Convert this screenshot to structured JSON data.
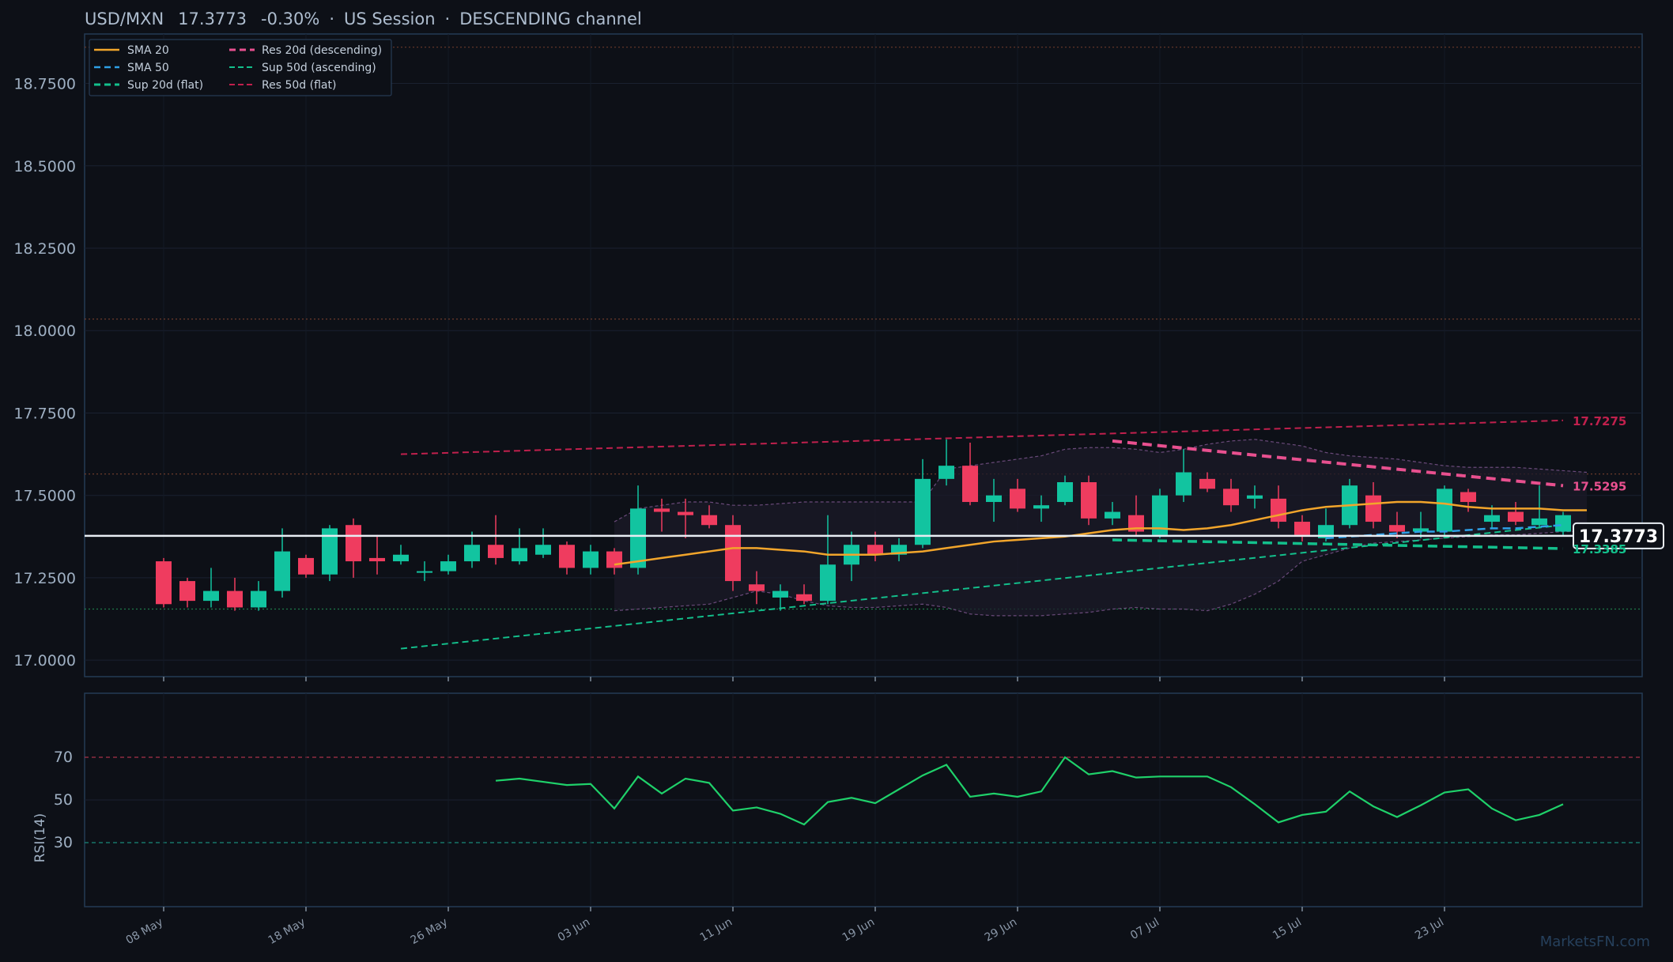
{
  "header": {
    "symbol": "USD/MXN",
    "price": "17.3773",
    "change": "-0.30%",
    "session": "US Session",
    "channel": "DESCENDING channel"
  },
  "watermark": "MarketsFN.com",
  "colors": {
    "background": "#0d1017",
    "bull": "#12c4a0",
    "bear": "#ef3c5f",
    "sma20": "#f2a52b",
    "sma50": "#2e9fe6",
    "support": "#13c08c",
    "resistance": "#e8508f",
    "res50": "#c0204d",
    "rsi": "#1fd16a"
  },
  "chart_data": [
    {
      "type": "candlestick",
      "ylim": [
        16.95,
        18.9
      ],
      "yticks": [
        "17.0000",
        "17.2500",
        "17.5000",
        "17.7500",
        "18.0000",
        "18.2500",
        "18.5000",
        "18.7500"
      ],
      "xticks": [
        "08 May",
        "18 May",
        "26 May",
        "03 Jun",
        "11 Jun",
        "19 Jun",
        "29 Jun",
        "07 Jul",
        "15 Jul",
        "23 Jul"
      ],
      "xtick_index": [
        0,
        6,
        12,
        18,
        24,
        30,
        36,
        42,
        48,
        54
      ],
      "legend": [
        "SMA 20",
        "SMA 50",
        "Sup 20d (flat)",
        "Res 20d (descending)",
        "Sup 50d (ascending)",
        "Res 50d (flat)"
      ],
      "legend_placement": "top-left",
      "candles": [
        {
          "o": 17.3,
          "h": 17.31,
          "l": 17.16,
          "c": 17.17
        },
        {
          "o": 17.24,
          "h": 17.25,
          "l": 17.16,
          "c": 17.18
        },
        {
          "o": 17.18,
          "h": 17.28,
          "l": 17.16,
          "c": 17.21
        },
        {
          "o": 17.21,
          "h": 17.25,
          "l": 17.15,
          "c": 17.16
        },
        {
          "o": 17.16,
          "h": 17.24,
          "l": 17.15,
          "c": 17.21
        },
        {
          "o": 17.21,
          "h": 17.4,
          "l": 17.19,
          "c": 17.33
        },
        {
          "o": 17.31,
          "h": 17.32,
          "l": 17.25,
          "c": 17.26
        },
        {
          "o": 17.26,
          "h": 17.41,
          "l": 17.24,
          "c": 17.4
        },
        {
          "o": 17.41,
          "h": 17.43,
          "l": 17.25,
          "c": 17.3
        },
        {
          "o": 17.31,
          "h": 17.38,
          "l": 17.26,
          "c": 17.3
        },
        {
          "o": 17.3,
          "h": 17.35,
          "l": 17.29,
          "c": 17.32
        },
        {
          "o": 17.27,
          "h": 17.3,
          "l": 17.24,
          "c": 17.27
        },
        {
          "o": 17.27,
          "h": 17.32,
          "l": 17.26,
          "c": 17.3
        },
        {
          "o": 17.3,
          "h": 17.39,
          "l": 17.28,
          "c": 17.35
        },
        {
          "o": 17.35,
          "h": 17.44,
          "l": 17.29,
          "c": 17.31
        },
        {
          "o": 17.3,
          "h": 17.4,
          "l": 17.29,
          "c": 17.34
        },
        {
          "o": 17.32,
          "h": 17.4,
          "l": 17.31,
          "c": 17.35
        },
        {
          "o": 17.35,
          "h": 17.36,
          "l": 17.26,
          "c": 17.28
        },
        {
          "o": 17.28,
          "h": 17.35,
          "l": 17.26,
          "c": 17.33
        },
        {
          "o": 17.33,
          "h": 17.34,
          "l": 17.26,
          "c": 17.28
        },
        {
          "o": 17.28,
          "h": 17.53,
          "l": 17.26,
          "c": 17.46
        },
        {
          "o": 17.46,
          "h": 17.49,
          "l": 17.39,
          "c": 17.45
        },
        {
          "o": 17.45,
          "h": 17.49,
          "l": 17.37,
          "c": 17.44
        },
        {
          "o": 17.44,
          "h": 17.47,
          "l": 17.4,
          "c": 17.41
        },
        {
          "o": 17.41,
          "h": 17.44,
          "l": 17.21,
          "c": 17.24
        },
        {
          "o": 17.23,
          "h": 17.27,
          "l": 17.17,
          "c": 17.21
        },
        {
          "o": 17.19,
          "h": 17.23,
          "l": 17.15,
          "c": 17.21
        },
        {
          "o": 17.2,
          "h": 17.23,
          "l": 17.17,
          "c": 17.18
        },
        {
          "o": 17.18,
          "h": 17.44,
          "l": 17.17,
          "c": 17.29
        },
        {
          "o": 17.29,
          "h": 17.39,
          "l": 17.24,
          "c": 17.35
        },
        {
          "o": 17.35,
          "h": 17.39,
          "l": 17.3,
          "c": 17.32
        },
        {
          "o": 17.32,
          "h": 17.37,
          "l": 17.3,
          "c": 17.35
        },
        {
          "o": 17.35,
          "h": 17.61,
          "l": 17.34,
          "c": 17.55
        },
        {
          "o": 17.55,
          "h": 17.67,
          "l": 17.53,
          "c": 17.59
        },
        {
          "o": 17.59,
          "h": 17.66,
          "l": 17.47,
          "c": 17.48
        },
        {
          "o": 17.48,
          "h": 17.55,
          "l": 17.42,
          "c": 17.5
        },
        {
          "o": 17.52,
          "h": 17.55,
          "l": 17.45,
          "c": 17.46
        },
        {
          "o": 17.46,
          "h": 17.5,
          "l": 17.42,
          "c": 17.47
        },
        {
          "o": 17.48,
          "h": 17.56,
          "l": 17.47,
          "c": 17.54
        },
        {
          "o": 17.54,
          "h": 17.56,
          "l": 17.41,
          "c": 17.43
        },
        {
          "o": 17.43,
          "h": 17.48,
          "l": 17.41,
          "c": 17.45
        },
        {
          "o": 17.44,
          "h": 17.5,
          "l": 17.38,
          "c": 17.39
        },
        {
          "o": 17.38,
          "h": 17.52,
          "l": 17.37,
          "c": 17.5
        },
        {
          "o": 17.5,
          "h": 17.64,
          "l": 17.48,
          "c": 17.57
        },
        {
          "o": 17.55,
          "h": 17.57,
          "l": 17.51,
          "c": 17.52
        },
        {
          "o": 17.52,
          "h": 17.55,
          "l": 17.45,
          "c": 17.47
        },
        {
          "o": 17.49,
          "h": 17.53,
          "l": 17.46,
          "c": 17.5
        },
        {
          "o": 17.49,
          "h": 17.53,
          "l": 17.4,
          "c": 17.42
        },
        {
          "o": 17.42,
          "h": 17.44,
          "l": 17.36,
          "c": 17.38
        },
        {
          "o": 17.37,
          "h": 17.46,
          "l": 17.36,
          "c": 17.41
        },
        {
          "o": 17.41,
          "h": 17.55,
          "l": 17.4,
          "c": 17.53
        },
        {
          "o": 17.5,
          "h": 17.54,
          "l": 17.4,
          "c": 17.42
        },
        {
          "o": 17.41,
          "h": 17.45,
          "l": 17.37,
          "c": 17.39
        },
        {
          "o": 17.39,
          "h": 17.45,
          "l": 17.37,
          "c": 17.4
        },
        {
          "o": 17.39,
          "h": 17.53,
          "l": 17.38,
          "c": 17.52
        },
        {
          "o": 17.51,
          "h": 17.52,
          "l": 17.45,
          "c": 17.48
        },
        {
          "o": 17.42,
          "h": 17.47,
          "l": 17.4,
          "c": 17.44
        },
        {
          "o": 17.45,
          "h": 17.48,
          "l": 17.41,
          "c": 17.42
        },
        {
          "o": 17.41,
          "h": 17.53,
          "l": 17.4,
          "c": 17.43
        },
        {
          "o": 17.39,
          "h": 17.45,
          "l": 17.38,
          "c": 17.44
        }
      ],
      "sma20": {
        "start": 19,
        "values": [
          17.29,
          17.3,
          17.31,
          17.32,
          17.33,
          17.34,
          17.34,
          17.335,
          17.33,
          17.32,
          17.32,
          17.32,
          17.325,
          17.33,
          17.34,
          17.35,
          17.36,
          17.365,
          17.37,
          17.375,
          17.385,
          17.395,
          17.4,
          17.4,
          17.395,
          17.4,
          17.41,
          17.425,
          17.44,
          17.455,
          17.465,
          17.47,
          17.475,
          17.48,
          17.48,
          17.475,
          17.465,
          17.46,
          17.46,
          17.46,
          17.455,
          17.455
        ]
      },
      "sma50": {
        "start": 49,
        "values": [
          17.37,
          17.375,
          17.38,
          17.385,
          17.39,
          17.39,
          17.395,
          17.4,
          17.4,
          17.405,
          17.41
        ]
      },
      "bands": {
        "start": 19,
        "upper": [
          17.42,
          17.46,
          17.47,
          17.48,
          17.48,
          17.47,
          17.47,
          17.475,
          17.48,
          17.48,
          17.48,
          17.48,
          17.48,
          17.48,
          17.58,
          17.59,
          17.6,
          17.61,
          17.62,
          17.64,
          17.645,
          17.645,
          17.64,
          17.63,
          17.64,
          17.655,
          17.665,
          17.67,
          17.66,
          17.65,
          17.63,
          17.62,
          17.615,
          17.61,
          17.6,
          17.59,
          17.585,
          17.585,
          17.585,
          17.58,
          17.575,
          17.57
        ],
        "lower": [
          17.15,
          17.155,
          17.16,
          17.165,
          17.17,
          17.19,
          17.21,
          17.2,
          17.18,
          17.165,
          17.16,
          17.16,
          17.165,
          17.17,
          17.16,
          17.14,
          17.135,
          17.135,
          17.135,
          17.14,
          17.145,
          17.155,
          17.16,
          17.155,
          17.155,
          17.15,
          17.17,
          17.2,
          17.24,
          17.3,
          17.32,
          17.34,
          17.355,
          17.36,
          17.365,
          17.37,
          17.375,
          17.38,
          17.38,
          17.385,
          17.39,
          17.39
        ]
      },
      "levels": {
        "current": 17.3773,
        "res20": {
          "from": 40,
          "to": 59,
          "start": 17.665,
          "end": 17.5295,
          "label": "17.5295"
        },
        "sup20": {
          "from": 40,
          "to": 59,
          "start": 17.365,
          "end": 17.3385,
          "label": "17.3385"
        },
        "sup50": {
          "from": 10,
          "to": 59,
          "start": 17.035,
          "end": 17.41
        },
        "res50": {
          "from": 10,
          "to": 59,
          "start": 17.625,
          "end": 17.7275,
          "label": "17.7275"
        },
        "hlines": [
          18.86,
          18.035,
          17.565,
          17.155
        ]
      },
      "current_label": "17.3773"
    },
    {
      "type": "line",
      "ylabel": "RSI(14)",
      "ylim": [
        0,
        100
      ],
      "yticks": [
        "30",
        "50",
        "70"
      ],
      "overbought": 70,
      "oversold": 30,
      "series": [
        {
          "start": 14,
          "values": [
            59,
            60,
            58.5,
            57,
            57.5,
            46,
            61,
            53,
            60,
            58,
            45,
            46.5,
            43.5,
            38.5,
            49,
            51,
            48.5,
            55,
            61.5,
            66.5,
            51.5,
            53,
            51.5,
            54,
            70,
            62,
            63.5,
            60.5,
            61,
            61,
            61,
            56,
            48,
            39.5,
            43,
            44.5,
            54,
            47,
            42,
            47.5,
            53.5,
            55,
            46,
            40.5,
            43,
            48
          ]
        }
      ]
    }
  ]
}
